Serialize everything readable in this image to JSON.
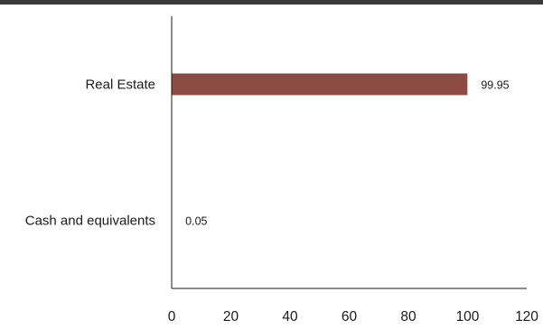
{
  "chart_data": {
    "type": "bar",
    "orientation": "horizontal",
    "categories": [
      "Real Estate",
      "Cash and equivalents"
    ],
    "values": [
      99.95,
      0.05
    ],
    "data_labels": [
      "99.95",
      "0.05"
    ],
    "bar_color": "#8b4a42",
    "xlim": [
      0,
      120
    ],
    "x_ticks": [
      0,
      20,
      40,
      60,
      80,
      100,
      120
    ],
    "x_tick_labels": [
      "0",
      "20",
      "40",
      "60",
      "80",
      "100",
      "120"
    ],
    "grid": false,
    "legend": "none"
  },
  "colors": {
    "top_bar": "#3a3a3a",
    "text": "#1a1a1a",
    "axis": "#1a1a1a"
  }
}
